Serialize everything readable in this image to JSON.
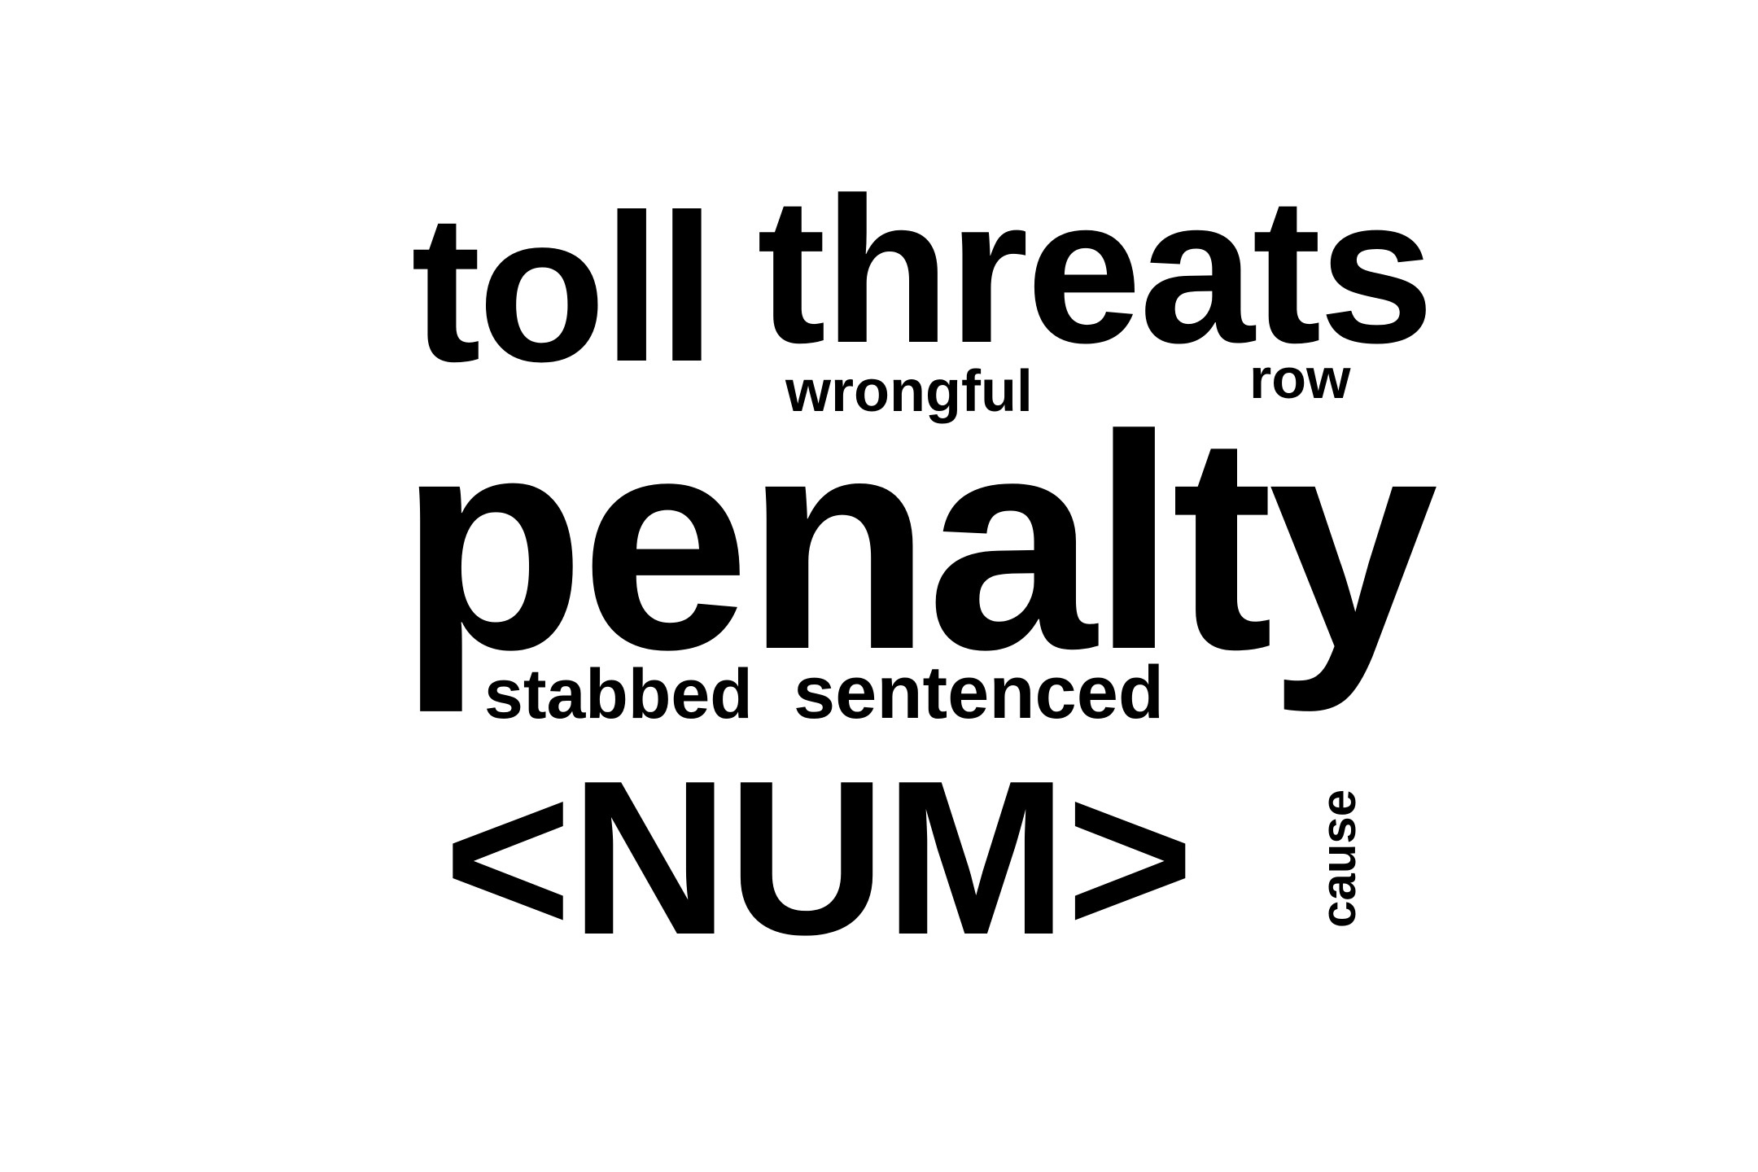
{
  "words": [
    {
      "key": "toll",
      "text": "toll"
    },
    {
      "key": "threats",
      "text": "threats"
    },
    {
      "key": "wrongful",
      "text": "wrongful"
    },
    {
      "key": "row",
      "text": "row"
    },
    {
      "key": "penalty",
      "text": "penalty"
    },
    {
      "key": "stabbed",
      "text": "stabbed"
    },
    {
      "key": "sentenced",
      "text": "sentenced"
    },
    {
      "key": "num",
      "text": "<NUM>"
    },
    {
      "key": "cause",
      "text": "cause",
      "orientation": "vertical"
    }
  ],
  "colors": {
    "background": "#ffffff",
    "text": "#000000"
  }
}
